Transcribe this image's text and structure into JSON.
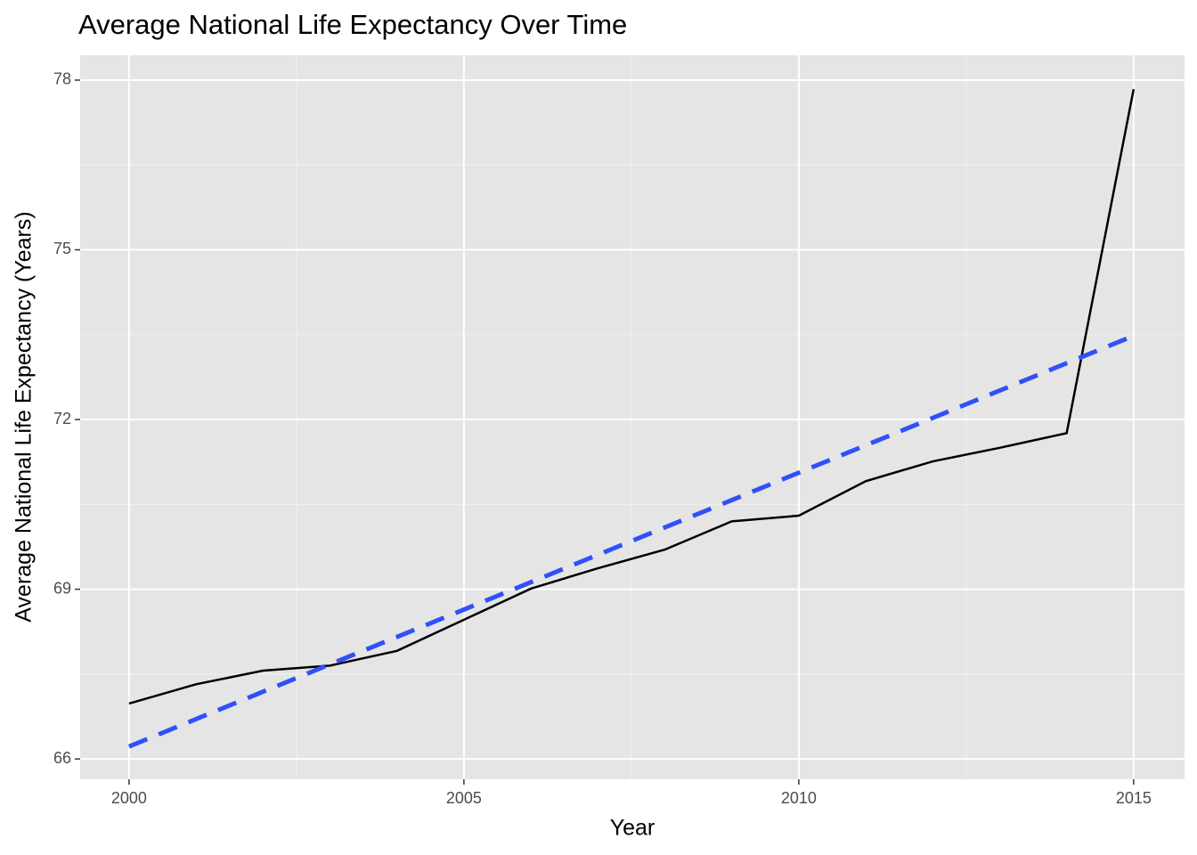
{
  "chart_data": {
    "type": "line",
    "title": "Average National Life Expectancy Over Time",
    "x_label": "Year",
    "y_label": "Average National Life Expectancy (Years)",
    "x": [
      2000,
      2001,
      2002,
      2003,
      2004,
      2005,
      2006,
      2007,
      2008,
      2009,
      2010,
      2011,
      2012,
      2013,
      2014,
      2015
    ],
    "series": [
      {
        "color": "#000000",
        "linestyle": "solid",
        "values": [
          66.98,
          67.32,
          67.56,
          67.65,
          67.91,
          68.46,
          69.01,
          69.37,
          69.7,
          70.2,
          70.3,
          70.91,
          71.26,
          71.5,
          71.76,
          77.84
        ]
      },
      {
        "color": "#3050f8",
        "linestyle": "dashed",
        "x": [
          2000,
          2015
        ],
        "values": [
          66.22,
          73.48
        ]
      }
    ],
    "xlim": [
      1999.27,
      2015.76
    ],
    "ylim": [
      65.64,
      78.44
    ],
    "xticks": [
      2000,
      2005,
      2010,
      2015
    ],
    "yticks": [
      66,
      69,
      72,
      75,
      78
    ],
    "grid": true
  }
}
